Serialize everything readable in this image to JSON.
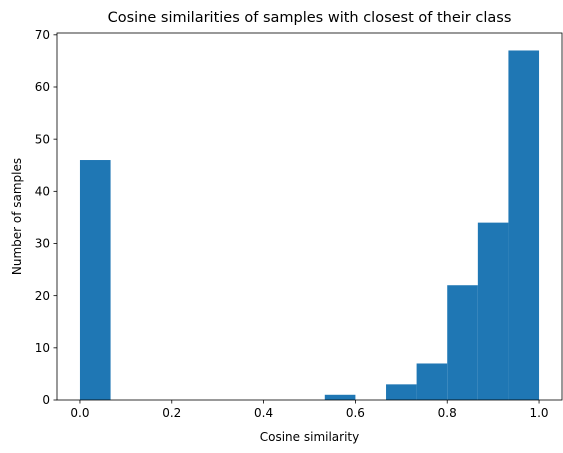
{
  "chart_data": {
    "type": "bar",
    "title": "Cosine similarities of samples with closest of their class",
    "xlabel": "Cosine similarity",
    "ylabel": "Number of samples",
    "bin_edges": [
      0.0,
      0.0667,
      0.1333,
      0.2,
      0.2667,
      0.3333,
      0.4,
      0.4667,
      0.5333,
      0.6,
      0.6667,
      0.7333,
      0.8,
      0.8667,
      0.9333,
      1.0
    ],
    "values": [
      46,
      0,
      0,
      0,
      0,
      0,
      0,
      0,
      1,
      0,
      3,
      7,
      22,
      34,
      67
    ],
    "xlim": [
      -0.05,
      1.05
    ],
    "ylim": [
      0,
      70.35
    ],
    "xticks": [
      0.0,
      0.2,
      0.4,
      0.6,
      0.8,
      1.0
    ],
    "xtick_labels": [
      "0.0",
      "0.2",
      "0.4",
      "0.6",
      "0.8",
      "1.0"
    ],
    "yticks": [
      0,
      10,
      20,
      30,
      40,
      50,
      60,
      70
    ],
    "ytick_labels": [
      "0",
      "10",
      "20",
      "30",
      "40",
      "50",
      "60",
      "70"
    ],
    "bar_color": "#1f77b4",
    "grid": false,
    "legend": false
  }
}
